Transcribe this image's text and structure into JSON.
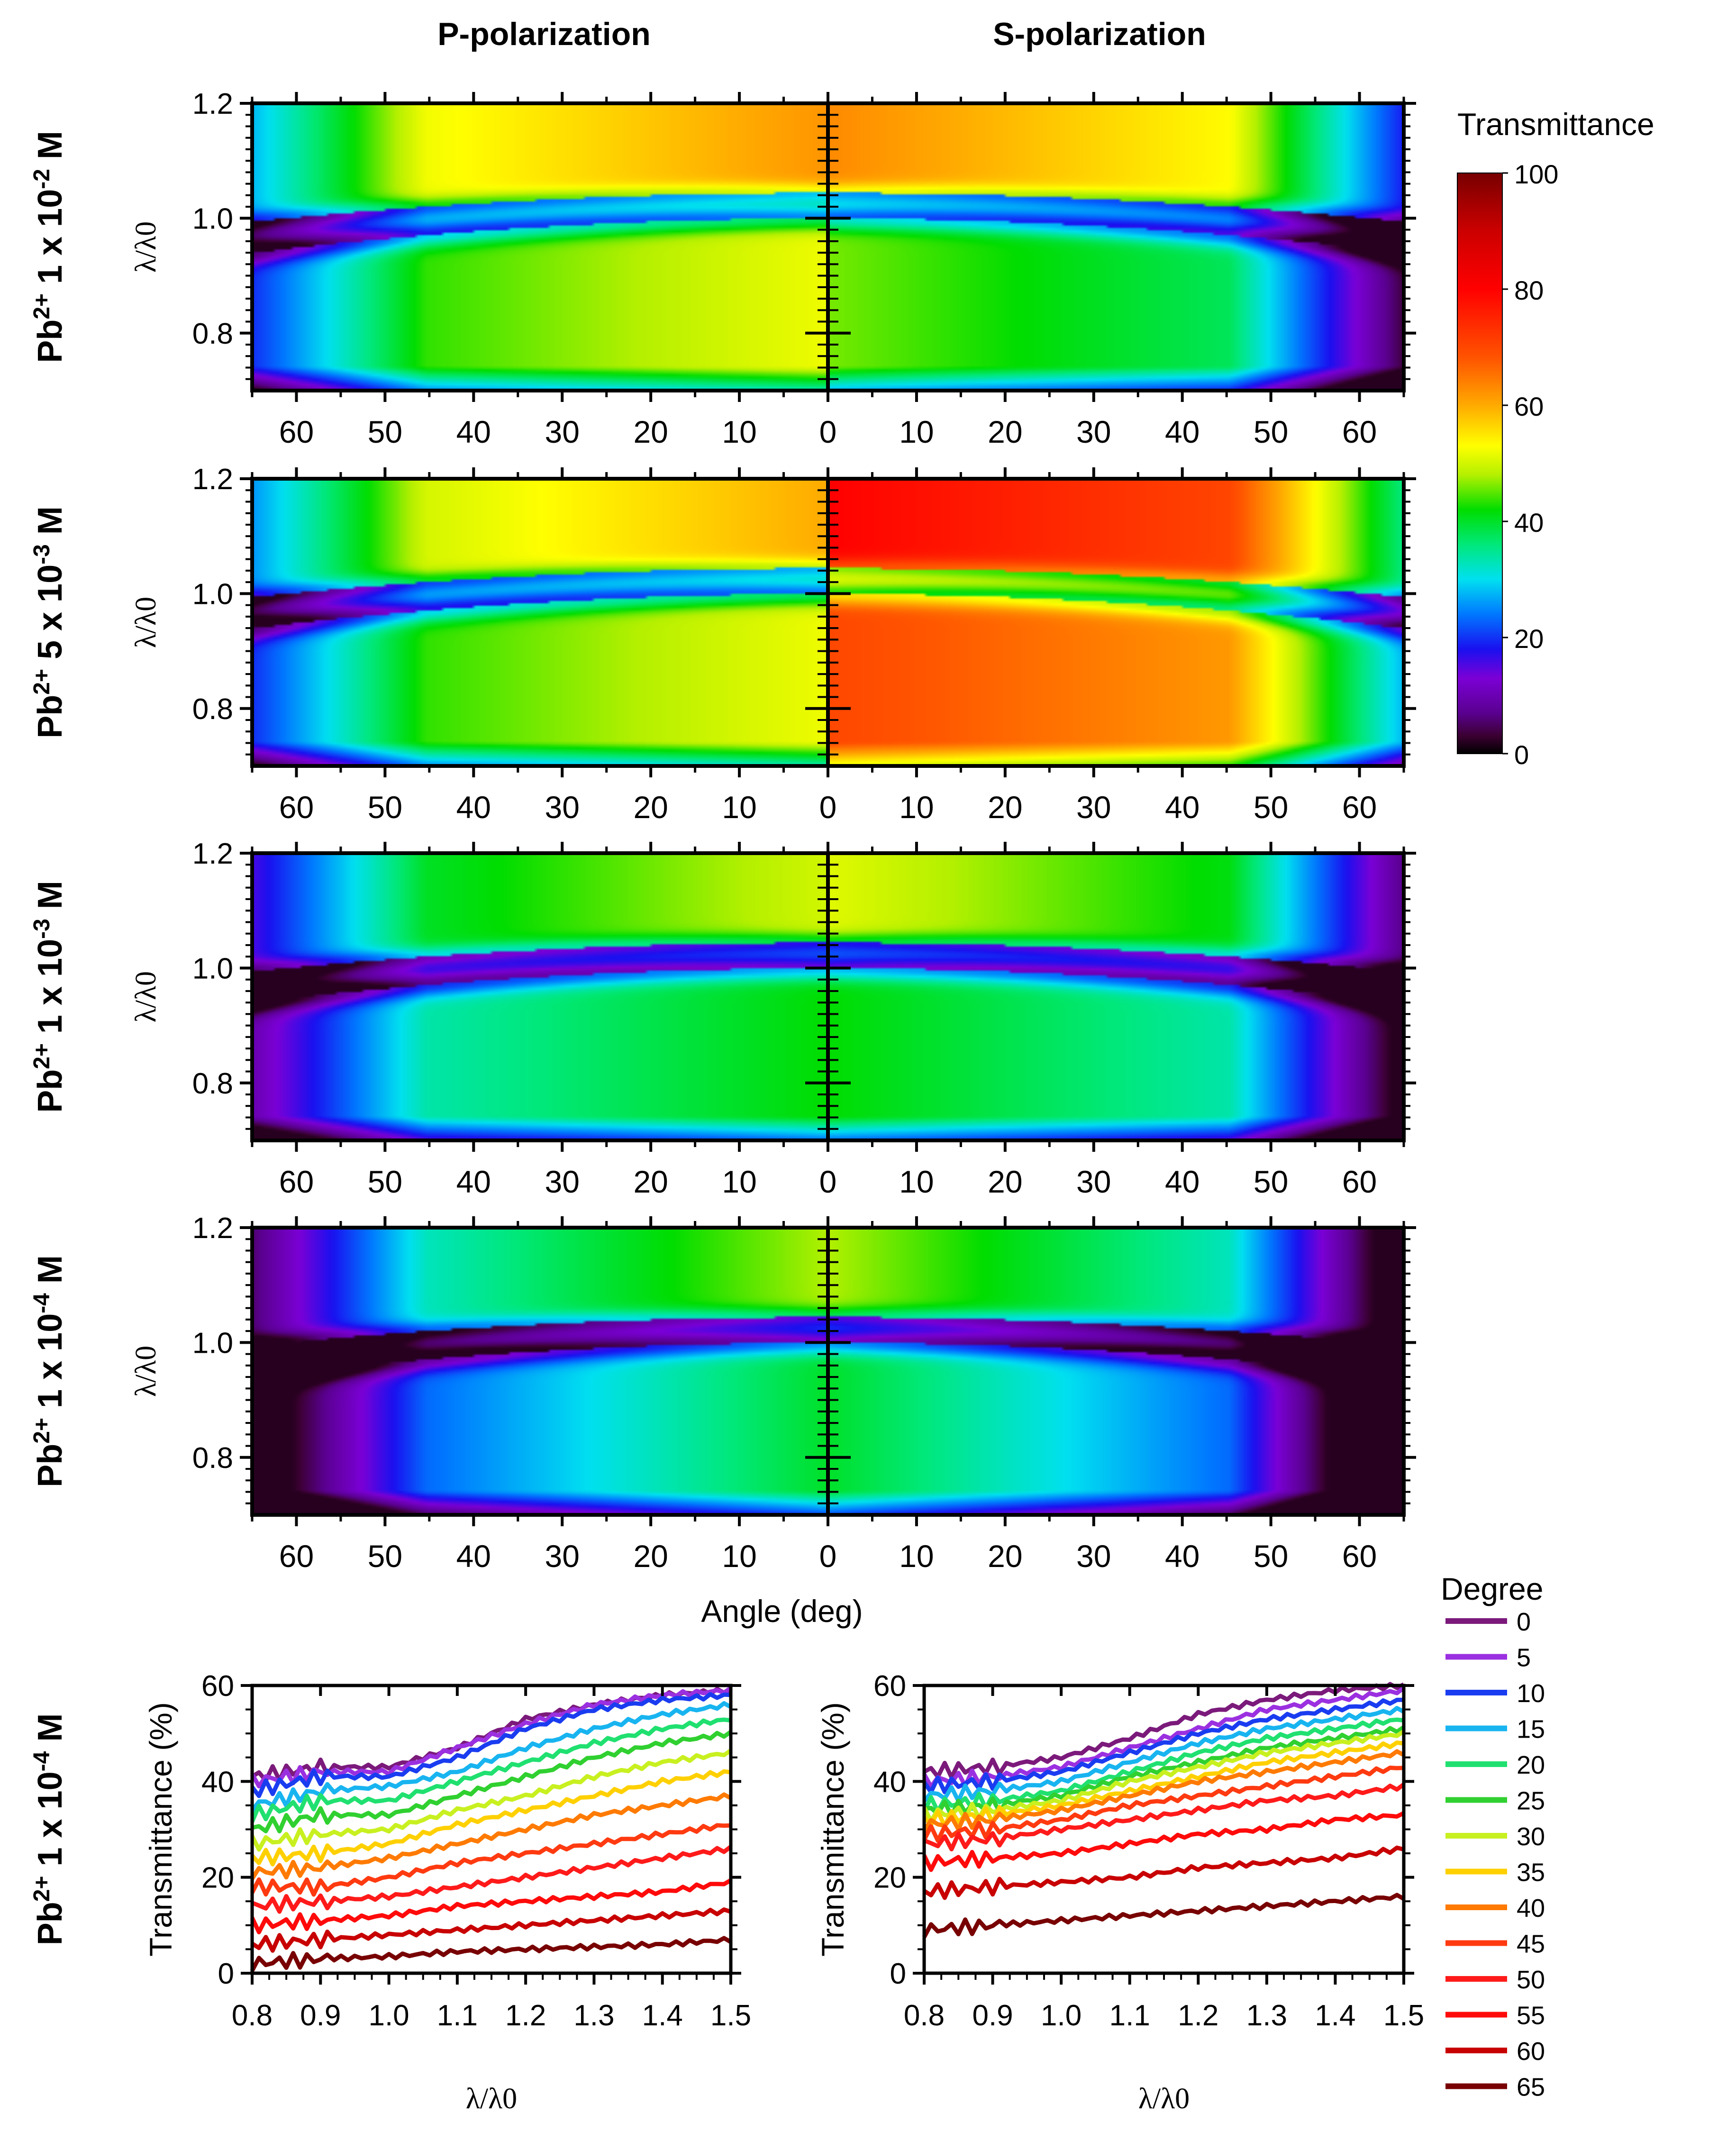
{
  "figure": {
    "col_titles": [
      "P-polarization",
      "S-polarization"
    ],
    "heatmap_ylabel": "λ/λ0",
    "x_axis_label": "Angle (deg)",
    "colorbar": {
      "title": "Transmittance",
      "range": [
        0,
        100
      ],
      "ticks": [
        "0",
        "20",
        "40",
        "60",
        "80",
        "100"
      ],
      "stops": [
        {
          "v": 0,
          "c": "#000000"
        },
        {
          "v": 3,
          "c": "#3a0030"
        },
        {
          "v": 7,
          "c": "#5a0090"
        },
        {
          "v": 13,
          "c": "#7b00d6"
        },
        {
          "v": 18,
          "c": "#1a10f0"
        },
        {
          "v": 24,
          "c": "#0078ff"
        },
        {
          "v": 30,
          "c": "#00e0f0"
        },
        {
          "v": 36,
          "c": "#00e87a"
        },
        {
          "v": 42,
          "c": "#00dd00"
        },
        {
          "v": 48,
          "c": "#b4f000"
        },
        {
          "v": 53,
          "c": "#ffff00"
        },
        {
          "v": 60,
          "c": "#ffaa00"
        },
        {
          "v": 68,
          "c": "#ff5500"
        },
        {
          "v": 80,
          "c": "#ff0000"
        },
        {
          "v": 90,
          "c": "#cc0000"
        },
        {
          "v": 100,
          "c": "#780000"
        }
      ]
    },
    "legend": {
      "title": "Degree",
      "entries": [
        {
          "label": "0",
          "color": "#7b1a7b"
        },
        {
          "label": "5",
          "color": "#9b30e0"
        },
        {
          "label": "10",
          "color": "#1a3cf0"
        },
        {
          "label": "15",
          "color": "#18b4f0"
        },
        {
          "label": "20",
          "color": "#20e070"
        },
        {
          "label": "25",
          "color": "#30d030"
        },
        {
          "label": "30",
          "color": "#c8f020"
        },
        {
          "label": "35",
          "color": "#ffd000"
        },
        {
          "label": "40",
          "color": "#ff7a00"
        },
        {
          "label": "45",
          "color": "#ff3a10"
        },
        {
          "label": "50",
          "color": "#ff1a1a"
        },
        {
          "label": "55",
          "color": "#ff0a0a"
        },
        {
          "label": "60",
          "color": "#c80000"
        },
        {
          "label": "65",
          "color": "#780000"
        }
      ]
    }
  },
  "chart_data": [
    {
      "type": "heatmap",
      "row_label": "Pb2+ 1 x 10-2 M",
      "label_main": "Pb",
      "label_sup1": "2+",
      "label_mid": " 1 x 10",
      "label_sup2": "-2",
      "label_end": " M",
      "x_axis": {
        "range": [
          -65,
          65
        ],
        "tick_labels": [
          "60",
          "50",
          "40",
          "30",
          "20",
          "10",
          "0",
          "10",
          "20",
          "30",
          "40",
          "50",
          "60"
        ]
      },
      "y_axis": {
        "range": [
          0.7,
          1.2
        ],
        "tick_labels": [
          "0.8",
          "1.0",
          "1.2"
        ]
      },
      "p_peak_top": 62,
      "p_peak_bottom": 52,
      "s_peak_top": 63,
      "s_peak_bottom": 46
    },
    {
      "type": "heatmap",
      "row_label": "Pb2+ 5 x 10-3 M",
      "label_main": "Pb",
      "label_sup1": "2+",
      "label_mid": " 5 x 10",
      "label_sup2": "-3",
      "label_end": " M",
      "x_axis": {
        "range": [
          -65,
          65
        ],
        "tick_labels": [
          "60",
          "50",
          "40",
          "30",
          "20",
          "10",
          "0",
          "10",
          "20",
          "30",
          "40",
          "50",
          "60"
        ]
      },
      "y_axis": {
        "range": [
          0.7,
          1.2
        ],
        "tick_labels": [
          "0.8",
          "1.0",
          "1.2"
        ]
      },
      "p_peak_top": 60,
      "p_peak_bottom": 52,
      "s_peak_top": 80,
      "s_peak_bottom": 70
    },
    {
      "type": "heatmap",
      "row_label": "Pb2+ 1 x 10-3 M",
      "label_main": "Pb",
      "label_sup1": "2+",
      "label_mid": " 1 x 10",
      "label_sup2": "-3",
      "label_end": " M",
      "x_axis": {
        "range": [
          -65,
          65
        ],
        "tick_labels": [
          "60",
          "50",
          "40",
          "30",
          "20",
          "10",
          "0",
          "10",
          "20",
          "30",
          "40",
          "50",
          "60"
        ]
      },
      "y_axis": {
        "range": [
          0.7,
          1.2
        ],
        "tick_labels": [
          "0.8",
          "1.0",
          "1.2"
        ]
      },
      "p_peak_top": 50,
      "p_peak_bottom": 42,
      "s_peak_top": 51,
      "s_peak_bottom": 42
    },
    {
      "type": "heatmap",
      "row_label": "Pb2+ 1 x 10-4 M",
      "label_main": "Pb",
      "label_sup1": "2+",
      "label_mid": " 1 x 10",
      "label_sup2": "-4",
      "label_end": " M",
      "x_axis": {
        "range": [
          -65,
          65
        ],
        "tick_labels": [
          "60",
          "50",
          "40",
          "30",
          "20",
          "10",
          "0",
          "10",
          "20",
          "30",
          "40",
          "50",
          "60"
        ]
      },
      "y_axis": {
        "range": [
          0.7,
          1.2
        ],
        "tick_labels": [
          "0.8",
          "1.0",
          "1.2"
        ]
      },
      "p_peak_top": 48,
      "p_peak_bottom": 40,
      "s_peak_top": 48,
      "s_peak_bottom": 40
    },
    {
      "type": "line",
      "polarization": "P",
      "row_label": "Pb2+ 1 x 10-4 M",
      "label_main": "Pb",
      "label_sup1": "2+",
      "label_mid": " 1 x 10",
      "label_sup2": "-4",
      "label_end": " M",
      "xlabel": "λ/λ0",
      "ylabel": "Transmittance (%)",
      "xlim": [
        0.8,
        1.5
      ],
      "ylim": [
        0,
        60
      ],
      "x_tick_labels": [
        "0.8",
        "0.9",
        "1.0",
        "1.1",
        "1.2",
        "1.3",
        "1.4",
        "1.5"
      ],
      "y_tick_labels": [
        "0",
        "20",
        "40",
        "60"
      ],
      "x": [
        0.8,
        0.9,
        1.0,
        1.1,
        1.2,
        1.3,
        1.4,
        1.5
      ],
      "series": [
        {
          "name": "0",
          "values": [
            41,
            43,
            43,
            47,
            53,
            56,
            58,
            59
          ]
        },
        {
          "name": "5",
          "values": [
            40,
            42,
            42,
            47,
            52,
            56,
            58,
            59
          ]
        },
        {
          "name": "10",
          "values": [
            38,
            41,
            41,
            45,
            51,
            55,
            57,
            58
          ]
        },
        {
          "name": "15",
          "values": [
            35,
            38,
            39,
            42,
            47,
            51,
            54,
            56
          ]
        },
        {
          "name": "20",
          "values": [
            33,
            36,
            36,
            40,
            44,
            48,
            51,
            53
          ]
        },
        {
          "name": "25",
          "values": [
            30,
            33,
            33,
            37,
            41,
            45,
            48,
            50
          ]
        },
        {
          "name": "30",
          "values": [
            27,
            29,
            30,
            34,
            37,
            41,
            44,
            46
          ]
        },
        {
          "name": "35",
          "values": [
            24,
            25,
            27,
            31,
            34,
            37,
            40,
            42
          ]
        },
        {
          "name": "40",
          "values": [
            21,
            22,
            24,
            27,
            30,
            33,
            35,
            37
          ]
        },
        {
          "name": "45",
          "values": [
            18,
            18,
            20,
            23,
            25,
            27,
            29,
            31
          ]
        },
        {
          "name": "50",
          "values": [
            14,
            15,
            16,
            18,
            20,
            22,
            24,
            26
          ]
        },
        {
          "name": "55",
          "values": [
            10,
            11,
            12,
            14,
            15,
            16,
            17,
            19
          ]
        },
        {
          "name": "60",
          "values": [
            6,
            7,
            8,
            9,
            10,
            11,
            12,
            13
          ]
        },
        {
          "name": "65",
          "values": [
            2,
            3,
            3.5,
            4.5,
            5,
            5.5,
            6,
            7
          ]
        }
      ]
    },
    {
      "type": "line",
      "polarization": "S",
      "xlabel": "λ/λ0",
      "ylabel": "Transmittance (%)",
      "xlim": [
        0.8,
        1.5
      ],
      "ylim": [
        0,
        60
      ],
      "x_tick_labels": [
        "0.8",
        "0.9",
        "1.0",
        "1.1",
        "1.2",
        "1.3",
        "1.4",
        "1.5"
      ],
      "y_tick_labels": [
        "0",
        "20",
        "40",
        "60"
      ],
      "x": [
        0.8,
        0.9,
        1.0,
        1.1,
        1.2,
        1.3,
        1.4,
        1.5
      ],
      "series": [
        {
          "name": "0",
          "values": [
            42,
            43,
            45,
            49,
            54,
            57,
            59,
            60
          ]
        },
        {
          "name": "5",
          "values": [
            40,
            41,
            43,
            47,
            51,
            55,
            57,
            59
          ]
        },
        {
          "name": "10",
          "values": [
            39,
            40,
            42,
            46,
            50,
            53,
            55,
            57
          ]
        },
        {
          "name": "15",
          "values": [
            37,
            38,
            40,
            44,
            48,
            51,
            53,
            55
          ]
        },
        {
          "name": "20",
          "values": [
            35,
            36,
            38,
            42,
            46,
            49,
            51,
            53
          ]
        },
        {
          "name": "25",
          "values": [
            34,
            35,
            37,
            41,
            44,
            47,
            49,
            51
          ]
        },
        {
          "name": "30",
          "values": [
            33,
            34,
            36,
            40,
            43,
            46,
            48,
            50
          ]
        },
        {
          "name": "35",
          "values": [
            32,
            33,
            35,
            38,
            41,
            44,
            46,
            48
          ]
        },
        {
          "name": "40",
          "values": [
            31,
            32,
            34,
            37,
            40,
            42,
            44,
            46
          ]
        },
        {
          "name": "45",
          "values": [
            29,
            30,
            32,
            35,
            37,
            39,
            41,
            43
          ]
        },
        {
          "name": "50",
          "values": [
            27,
            28,
            30,
            32,
            34,
            36,
            37,
            39
          ]
        },
        {
          "name": "55",
          "values": [
            23,
            24,
            25,
            27,
            29,
            30,
            32,
            33
          ]
        },
        {
          "name": "60",
          "values": [
            17,
            18,
            19,
            20,
            22,
            23,
            24,
            26
          ]
        },
        {
          "name": "65",
          "values": [
            9,
            10,
            11,
            12,
            13,
            14,
            15,
            16
          ]
        }
      ]
    }
  ]
}
